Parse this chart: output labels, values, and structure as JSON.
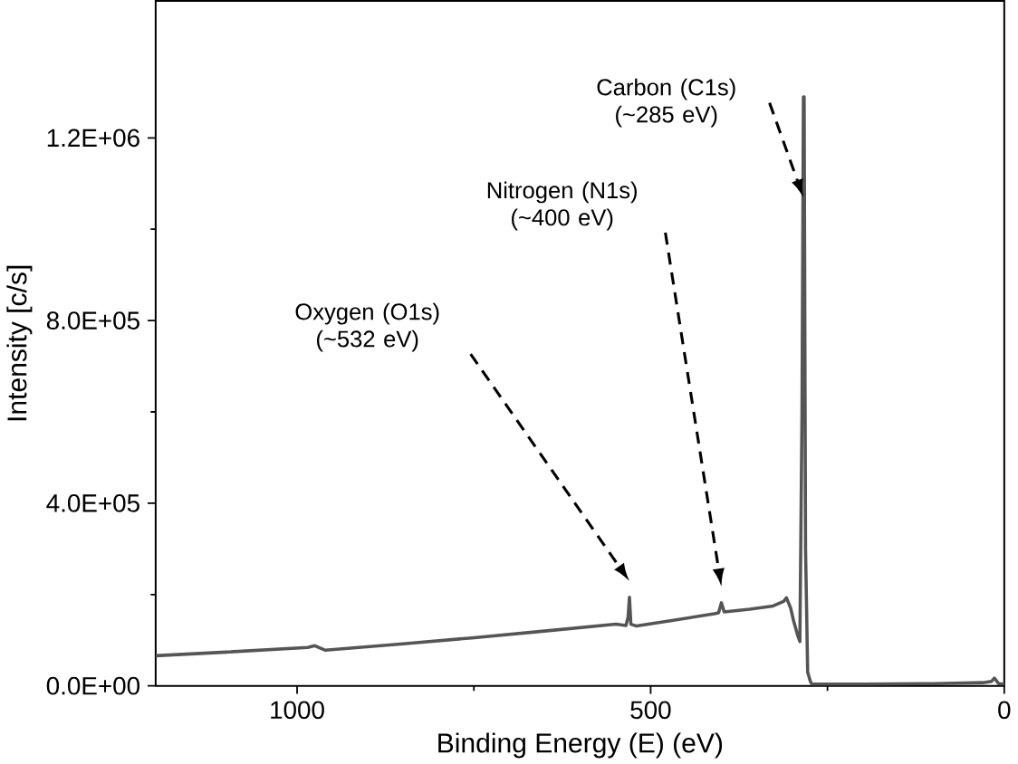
{
  "chart_data": {
    "type": "line",
    "xlabel": "Binding Energy (E) (eV)",
    "ylabel": "Intensity [c/s]",
    "xlim": [
      1200,
      0
    ],
    "xticks": [
      1000,
      500,
      0
    ],
    "ylim": [
      0,
      1500000
    ],
    "yticks": [
      {
        "value": 0,
        "label": "0.0E+00"
      },
      {
        "value": 400000,
        "label": "4.0E+05"
      },
      {
        "value": 800000,
        "label": "8.0E+05"
      },
      {
        "value": 1200000,
        "label": "1.2E+06"
      }
    ],
    "grid": false,
    "marker": "none",
    "line_style": "solid",
    "series": [
      {
        "color": "#555555",
        "x": [
          1200,
          1100,
          985,
          975,
          960,
          850,
          753,
          650,
          549,
          535,
          532,
          530,
          528,
          520,
          470,
          410,
          404,
          400,
          396,
          360,
          327,
          312,
          308,
          302,
          298,
          292,
          289,
          286,
          284,
          283,
          281,
          278,
          274,
          272,
          200,
          100,
          30,
          18,
          14,
          8,
          0
        ],
        "values": [
          66000,
          74000,
          84000,
          88000,
          78000,
          92000,
          105000,
          120000,
          135000,
          132000,
          150000,
          194000,
          135000,
          131000,
          143000,
          158000,
          160000,
          182000,
          162000,
          168000,
          175000,
          185000,
          193000,
          170000,
          143000,
          110000,
          97000,
          600000,
          1290000,
          1290000,
          300000,
          30000,
          9000,
          4000,
          4000,
          5000,
          7000,
          10000,
          17000,
          5000,
          4000
        ]
      }
    ],
    "annotations": [
      "Oxygen (O1s) (~532 eV)",
      "Nitrogen (N1s) (~400 eV)",
      "Carbon (C1s) (~285 eV)"
    ]
  }
}
